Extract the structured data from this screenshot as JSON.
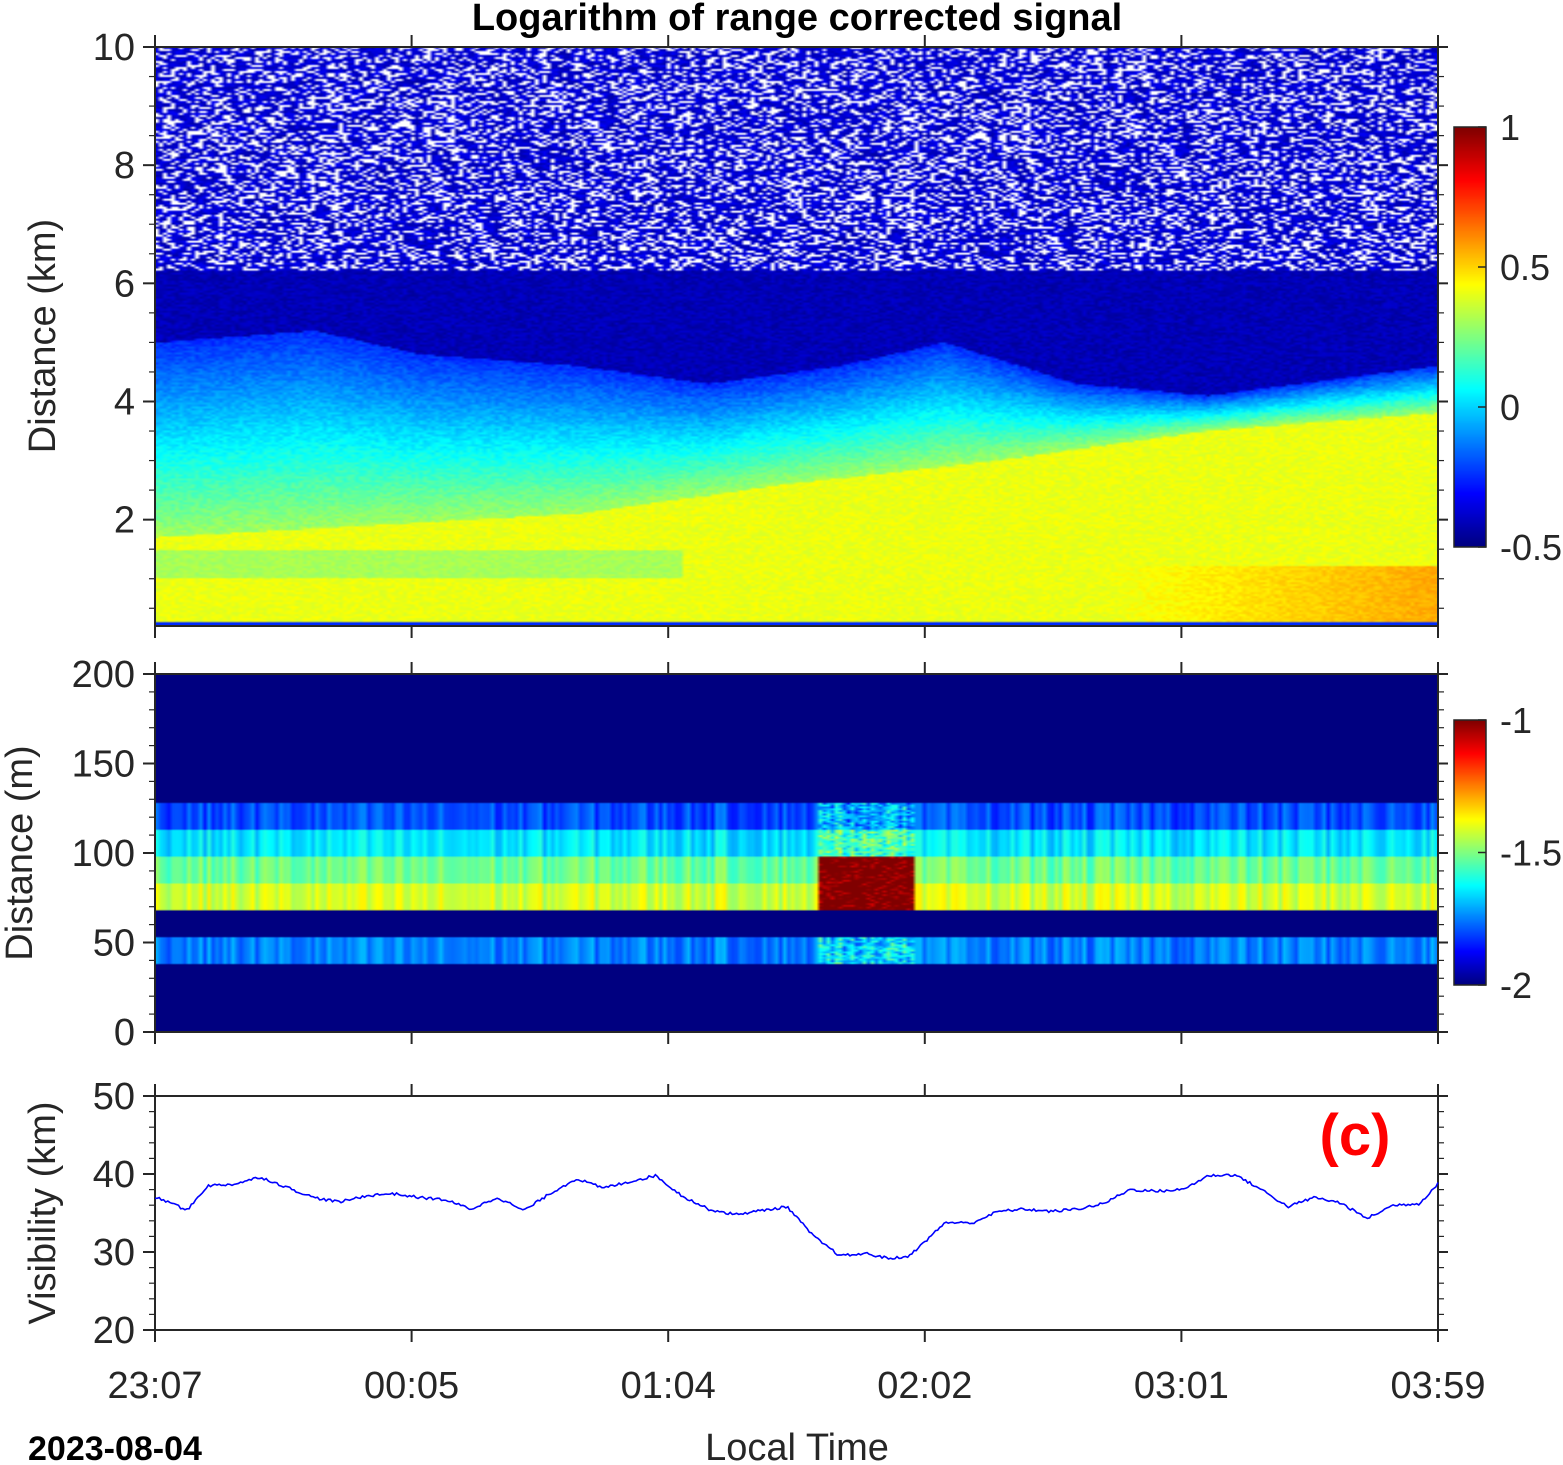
{
  "figure": {
    "title": "Logarithm of range corrected signal",
    "date_label": "2023-08-04",
    "xlabel": "Local Time",
    "time_ticks": [
      "23:07",
      "00:05",
      "01:04",
      "02:02",
      "03:01",
      "03:59"
    ],
    "time_range_hours": [
      0,
      4.87
    ]
  },
  "colors": {
    "series_line": "#0000ff",
    "panel_label": "#ff0000",
    "colormap": "jet"
  },
  "chart_data": [
    {
      "type": "heatmap",
      "title": "Logarithm of range corrected signal",
      "ylabel": "Distance (km)",
      "ylim": [
        0.2,
        10
      ],
      "y_ticks": [
        2,
        4,
        6,
        8,
        10
      ],
      "colorbar": {
        "range": [
          -0.5,
          1
        ],
        "ticks": [
          -0.5,
          0,
          0.5,
          1
        ]
      },
      "layers": {
        "aerosol_top_km": [
          [
            0.0,
            5.0
          ],
          [
            0.6,
            5.2
          ],
          [
            1.0,
            4.8
          ],
          [
            1.6,
            4.6
          ],
          [
            2.1,
            4.3
          ],
          [
            2.6,
            4.6
          ],
          [
            3.0,
            5.0
          ],
          [
            3.5,
            4.3
          ],
          [
            4.0,
            4.1
          ],
          [
            4.87,
            4.6
          ]
        ],
        "bright_layer_top_km": [
          [
            0.0,
            1.7
          ],
          [
            0.8,
            1.9
          ],
          [
            1.6,
            2.1
          ],
          [
            2.4,
            2.6
          ],
          [
            3.2,
            3.0
          ],
          [
            4.0,
            3.5
          ],
          [
            4.87,
            3.8
          ]
        ]
      }
    },
    {
      "type": "heatmap",
      "ylabel": "Distance (m)",
      "ylim": [
        0,
        200
      ],
      "y_ticks": [
        0,
        50,
        100,
        150,
        200
      ],
      "colorbar": {
        "range": [
          -2,
          -1
        ],
        "ticks": [
          -2,
          -1.5,
          -1
        ]
      },
      "bins_m": [
        {
          "y0": 38,
          "y1": 53,
          "base": -1.75
        },
        {
          "y0": 53,
          "y1": 68,
          "base": -2.0
        },
        {
          "y0": 68,
          "y1": 83,
          "base": -1.42
        },
        {
          "y0": 83,
          "y1": 98,
          "base": -1.52
        },
        {
          "y0": 98,
          "y1": 113,
          "base": -1.65
        },
        {
          "y0": 113,
          "y1": 128,
          "base": -1.8
        },
        {
          "y0": 128,
          "y1": 143,
          "base": -2.0
        }
      ],
      "event_hours": [
        2.52,
        2.88
      ],
      "event_peak": -1.08
    },
    {
      "type": "line",
      "ylabel": "Visibility (km)",
      "ylim": [
        20,
        50
      ],
      "y_ticks": [
        20,
        30,
        40,
        50
      ],
      "panel_label": "(c)",
      "series": [
        {
          "x": [
            0.0,
            0.07,
            0.12,
            0.2,
            0.3,
            0.4,
            0.5,
            0.6,
            0.7,
            0.8,
            0.9,
            1.0,
            1.1,
            1.2,
            1.3,
            1.4,
            1.5,
            1.6,
            1.7,
            1.8,
            1.9,
            2.0,
            2.1,
            2.2,
            2.3,
            2.4,
            2.5,
            2.6,
            2.7,
            2.78,
            2.85,
            2.9,
            3.0,
            3.1,
            3.2,
            3.3,
            3.4,
            3.5,
            3.6,
            3.7,
            3.8,
            3.9,
            4.0,
            4.1,
            4.2,
            4.3,
            4.4,
            4.5,
            4.6,
            4.7,
            4.8,
            4.87
          ],
          "y": [
            37,
            36.2,
            35.3,
            38.5,
            38.7,
            39.6,
            38.3,
            37.0,
            36.4,
            37.2,
            37.5,
            37.0,
            36.7,
            35.5,
            37.0,
            35.3,
            37.5,
            39.4,
            38.2,
            39.0,
            39.8,
            37.2,
            35.5,
            34.8,
            35.3,
            35.8,
            32.0,
            29.5,
            29.8,
            29.2,
            29.3,
            30.6,
            33.8,
            33.7,
            35.2,
            35.5,
            35.2,
            35.5,
            36.2,
            38.0,
            37.8,
            38.0,
            39.8,
            39.9,
            38.0,
            35.8,
            37.0,
            36.3,
            34.3,
            36.0,
            36.2,
            38.8
          ]
        }
      ]
    }
  ]
}
